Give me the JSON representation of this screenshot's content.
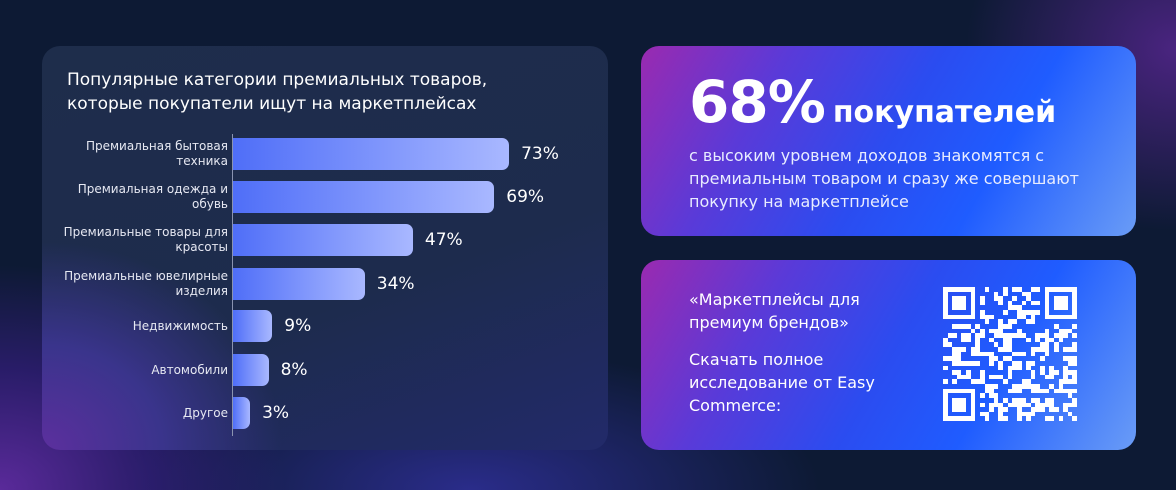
{
  "chart_data": {
    "type": "bar",
    "orientation": "horizontal",
    "title": "Популярные категории премиальных товаров, которые покупатели ищут на маркетплейсах",
    "categories": [
      "Премиальная бытовая техника",
      "Премиальная одежда и обувь",
      "Премиальные товары для красоты",
      "Премиальные ювелирные изделия",
      "Недвижимость",
      "Автомобили",
      "Другое"
    ],
    "values": [
      73,
      69,
      47,
      34,
      9,
      8,
      3
    ],
    "labels": [
      "73%",
      "69%",
      "47%",
      "34%",
      "9%",
      "8%",
      "3%"
    ],
    "unit": "%"
  },
  "stat": {
    "number": "68%",
    "word": "покупателей",
    "text": "с высоким уровнем доходов знакомятся с премиальным товаром и сразу же совершают покупку на маркетплейсе"
  },
  "promo": {
    "quote": "«Маркетплейсы для премиум брендов»",
    "download": "Скачать полное исследование от Easy Commerce:"
  },
  "colors": {
    "bar_start": "#4f6ef8",
    "bar_end": "#a9b8ff",
    "background": "#0d1a34"
  }
}
